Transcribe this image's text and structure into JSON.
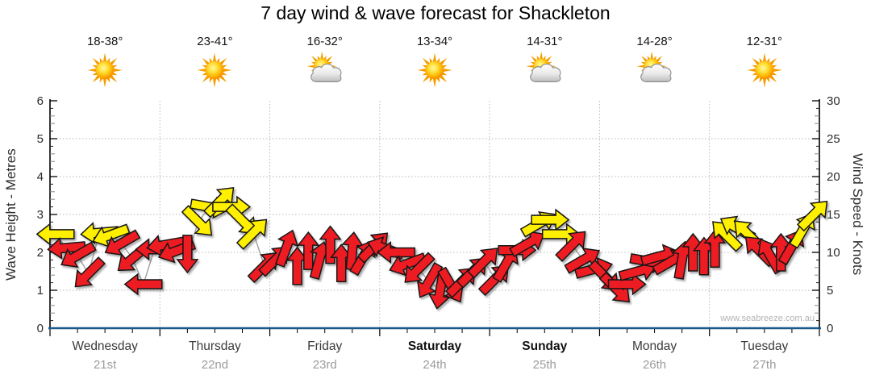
{
  "title": "7 day wind & wave forecast for Shackleton",
  "watermark": "www.seabreeze.com.au",
  "axes": {
    "left_label": "Wave Height - Metres",
    "right_label": "Wind Speed - Knots",
    "left_ticks": [
      0,
      1,
      2,
      3,
      4,
      5,
      6
    ],
    "right_ticks": [
      0,
      5,
      10,
      15,
      20,
      25,
      30
    ]
  },
  "days": [
    {
      "name": "Wednesday",
      "date": "21st",
      "temp": "18-38°",
      "icon": "sunny",
      "weekend": false
    },
    {
      "name": "Thursday",
      "date": "22nd",
      "temp": "23-41°",
      "icon": "sunny",
      "weekend": false
    },
    {
      "name": "Friday",
      "date": "23rd",
      "temp": "16-32°",
      "icon": "sun-cloud",
      "weekend": false
    },
    {
      "name": "Saturday",
      "date": "24th",
      "temp": "13-34°",
      "icon": "sunny",
      "weekend": true
    },
    {
      "name": "Sunday",
      "date": "25th",
      "temp": "14-31°",
      "icon": "sun-cloud",
      "weekend": true
    },
    {
      "name": "Monday",
      "date": "26th",
      "temp": "14-28°",
      "icon": "sun-cloud",
      "weekend": false
    },
    {
      "name": "Tuesday",
      "date": "27th",
      "temp": "12-31°",
      "icon": "sunny",
      "weekend": false
    }
  ],
  "chart_data": {
    "type": "scatter",
    "title": "7 day wind & wave forecast for Shackleton",
    "ylabel_left": "Wave Height - Metres",
    "ylim_left": [
      0,
      6
    ],
    "ylabel_right": "Wind Speed - Knots",
    "ylim_right": [
      0,
      30
    ],
    "categories": [
      "Wednesday 21st",
      "Thursday 22nd",
      "Friday 23rd",
      "Saturday 24th",
      "Sunday 25th",
      "Monday 26th",
      "Tuesday 27th"
    ],
    "grid": "dotted gray; vertical line at each day boundary, horizontal line each metre (5 knots)",
    "legend": "none",
    "colors": {
      "wind_light": "#ed1c24",
      "wind_moderate": "#ffef00",
      "wave_line": "#19598c"
    },
    "color_rule": "arrow yellow when knots >= 12, else red",
    "dir_convention": "degrees the arrow points toward: 0 = east/right, 90 = up/north, counter-clockwise",
    "wind_arrows": {
      "columns": [
        "day_time",
        "knots",
        "dir_deg"
      ],
      "points": [
        [
          0.05,
          12.4,
          180
        ],
        [
          0.15,
          10.6,
          185
        ],
        [
          0.25,
          9.6,
          210
        ],
        [
          0.35,
          7.2,
          225
        ],
        [
          0.45,
          12.6,
          185
        ],
        [
          0.55,
          12.3,
          200
        ],
        [
          0.65,
          11.2,
          210
        ],
        [
          0.75,
          9.2,
          220
        ],
        [
          0.85,
          5.8,
          180
        ],
        [
          0.95,
          10.4,
          180
        ],
        [
          1.05,
          11.0,
          190
        ],
        [
          1.15,
          10.2,
          200
        ],
        [
          1.25,
          9.8,
          270
        ],
        [
          1.35,
          14.0,
          315
        ],
        [
          1.45,
          16.0,
          350
        ],
        [
          1.55,
          16.8,
          45
        ],
        [
          1.65,
          16.0,
          0
        ],
        [
          1.75,
          14.2,
          315
        ],
        [
          1.85,
          12.6,
          45
        ],
        [
          1.95,
          8.2,
          45
        ],
        [
          2.05,
          9.0,
          45
        ],
        [
          2.15,
          10.6,
          70
        ],
        [
          2.25,
          8.2,
          90
        ],
        [
          2.35,
          10.2,
          90
        ],
        [
          2.45,
          9.0,
          75
        ],
        [
          2.55,
          11.0,
          90
        ],
        [
          2.65,
          8.6,
          90
        ],
        [
          2.75,
          10.2,
          85
        ],
        [
          2.85,
          9.4,
          60
        ],
        [
          2.95,
          10.8,
          45
        ],
        [
          3.05,
          10.5,
          160
        ],
        [
          3.15,
          10.0,
          180
        ],
        [
          3.25,
          8.5,
          200
        ],
        [
          3.35,
          7.8,
          225
        ],
        [
          3.45,
          6.2,
          240
        ],
        [
          3.55,
          5.0,
          260
        ],
        [
          3.65,
          5.6,
          300
        ],
        [
          3.75,
          6.2,
          45
        ],
        [
          3.85,
          7.5,
          45
        ],
        [
          3.95,
          8.8,
          45
        ],
        [
          4.05,
          6.5,
          45
        ],
        [
          4.15,
          8.5,
          60
        ],
        [
          4.25,
          10.3,
          0
        ],
        [
          4.35,
          11.2,
          30
        ],
        [
          4.45,
          13.8,
          30
        ],
        [
          4.55,
          14.3,
          0
        ],
        [
          4.65,
          12.4,
          0
        ],
        [
          4.75,
          11.0,
          45
        ],
        [
          4.85,
          9.0,
          30
        ],
        [
          4.95,
          7.8,
          15
        ],
        [
          5.05,
          6.8,
          315
        ],
        [
          5.15,
          5.2,
          315
        ],
        [
          5.25,
          5.8,
          0
        ],
        [
          5.35,
          7.5,
          15
        ],
        [
          5.45,
          8.8,
          350
        ],
        [
          5.55,
          9.5,
          15
        ],
        [
          5.65,
          8.8,
          30
        ],
        [
          5.75,
          9.0,
          80
        ],
        [
          5.85,
          10.0,
          90
        ],
        [
          5.95,
          9.5,
          90
        ],
        [
          6.05,
          10.5,
          90
        ],
        [
          6.15,
          12.3,
          135
        ],
        [
          6.25,
          13.2,
          150
        ],
        [
          6.35,
          12.4,
          135
        ],
        [
          6.45,
          10.3,
          135
        ],
        [
          6.55,
          9.6,
          120
        ],
        [
          6.65,
          10.0,
          90
        ],
        [
          6.75,
          10.8,
          60
        ],
        [
          6.85,
          13.0,
          60
        ],
        [
          6.95,
          15.0,
          45
        ]
      ]
    },
    "wave_height_metres": {
      "description": "flat at ~0 m for the whole week (blue line along the baseline)",
      "series": [
        [
          0,
          0
        ],
        [
          7,
          0
        ]
      ]
    }
  }
}
